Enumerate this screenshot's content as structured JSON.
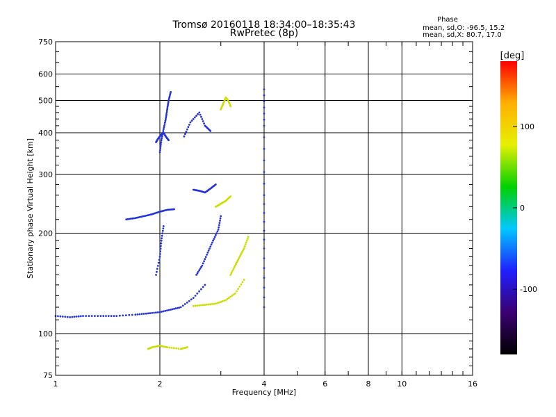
{
  "chart_data": {
    "type": "scatter",
    "title": "Tromsø 20160118 18:34:00–18:35:43",
    "subtitle": "RwPretec (8p)",
    "xlabel": "Frequency [MHz]",
    "ylabel": "Stationary phase Virtual Height [km]",
    "x_scale": "log",
    "y_scale": "log",
    "xlim": [
      1,
      16
    ],
    "ylim": [
      75,
      750
    ],
    "x_ticks": [
      1,
      2,
      4,
      6,
      8,
      10,
      16
    ],
    "x_tick_labels": [
      "1",
      "2",
      "4",
      "6",
      "8",
      "10",
      "16"
    ],
    "y_ticks": [
      75,
      100,
      200,
      300,
      400,
      500,
      600,
      750
    ],
    "y_tick_labels": [
      "75",
      "100",
      "200",
      "300",
      "400",
      "500",
      "600",
      "750"
    ],
    "grid": true,
    "phase_stats": {
      "heading": "Phase",
      "line_o": "mean, sd,O: -96.5, 15.2",
      "line_x": "mean, sd,X:  80.7, 17.0"
    },
    "colorbar": {
      "label": "[deg]",
      "min": -180,
      "max": 180,
      "ticks": [
        100,
        0,
        -100
      ],
      "tick_labels": [
        "100",
        "0",
        "-100"
      ],
      "colors": [
        "#000000",
        "#3b0070",
        "#2020ff",
        "#00c8ff",
        "#00d000",
        "#e6f000",
        "#ffb000",
        "#ff0000"
      ]
    },
    "series": [
      {
        "phase_deg": -100,
        "color": "#2233dd",
        "traces": [
          {
            "x": [
              1.0,
              1.1,
              1.2,
              1.35,
              1.5,
              1.7,
              1.85,
              2.0,
              2.15,
              2.3,
              2.5,
              2.7
            ],
            "y": [
              113,
              112,
              113,
              113,
              113,
              114,
              115,
              116,
              118,
              120,
              128,
              140
            ]
          },
          {
            "x": [
              2.55,
              2.65,
              2.75,
              2.85,
              2.95,
              3.0
            ],
            "y": [
              150,
              160,
              175,
              190,
              205,
              225
            ]
          },
          {
            "x": [
              2.0,
              2.02,
              2.05,
              2.08,
              2.1,
              2.12,
              2.15
            ],
            "y": [
              350,
              380,
              410,
              440,
              470,
              500,
              530
            ]
          },
          {
            "x": [
              1.95,
              1.98,
              2.02,
              2.05,
              2.08,
              2.12
            ],
            "y": [
              375,
              385,
              395,
              400,
              390,
              380
            ]
          },
          {
            "x": [
              2.35,
              2.45,
              2.6,
              2.7,
              2.8
            ],
            "y": [
              390,
              430,
              460,
              420,
              405
            ]
          },
          {
            "x": [
              1.6,
              1.7,
              1.8,
              1.9,
              2.0,
              2.1,
              2.2
            ],
            "y": [
              220,
              222,
              225,
              228,
              232,
              235,
              236
            ]
          },
          {
            "x": [
              2.5,
              2.6,
              2.7,
              2.8,
              2.9
            ],
            "y": [
              270,
              268,
              265,
              272,
              280
            ]
          },
          {
            "x": [
              1.95,
              2.0,
              2.02,
              2.05
            ],
            "y": [
              150,
              170,
              190,
              210
            ]
          },
          {
            "x": [
              4.0,
              4.0,
              4.0,
              4.0,
              4.0
            ],
            "y": [
              120,
              180,
              260,
              420,
              540
            ]
          }
        ]
      },
      {
        "phase_deg": 90,
        "color": "#ccdd00",
        "traces": [
          {
            "x": [
              2.5,
              2.7,
              2.9,
              3.1,
              3.3,
              3.5
            ],
            "y": [
              121,
              122,
              123,
              126,
              132,
              145
            ]
          },
          {
            "x": [
              3.2,
              3.3,
              3.4,
              3.5,
              3.6
            ],
            "y": [
              150,
              160,
              170,
              180,
              195
            ]
          },
          {
            "x": [
              3.0,
              3.05,
              3.1,
              3.15,
              3.2
            ],
            "y": [
              470,
              490,
              510,
              500,
              480
            ]
          },
          {
            "x": [
              2.9,
              3.0,
              3.1,
              3.2
            ],
            "y": [
              240,
              245,
              250,
              258
            ]
          },
          {
            "x": [
              1.85,
              1.9,
              2.0,
              2.1,
              2.3,
              2.4
            ],
            "y": [
              90,
              91,
              92,
              91,
              90,
              91
            ]
          }
        ]
      }
    ]
  }
}
